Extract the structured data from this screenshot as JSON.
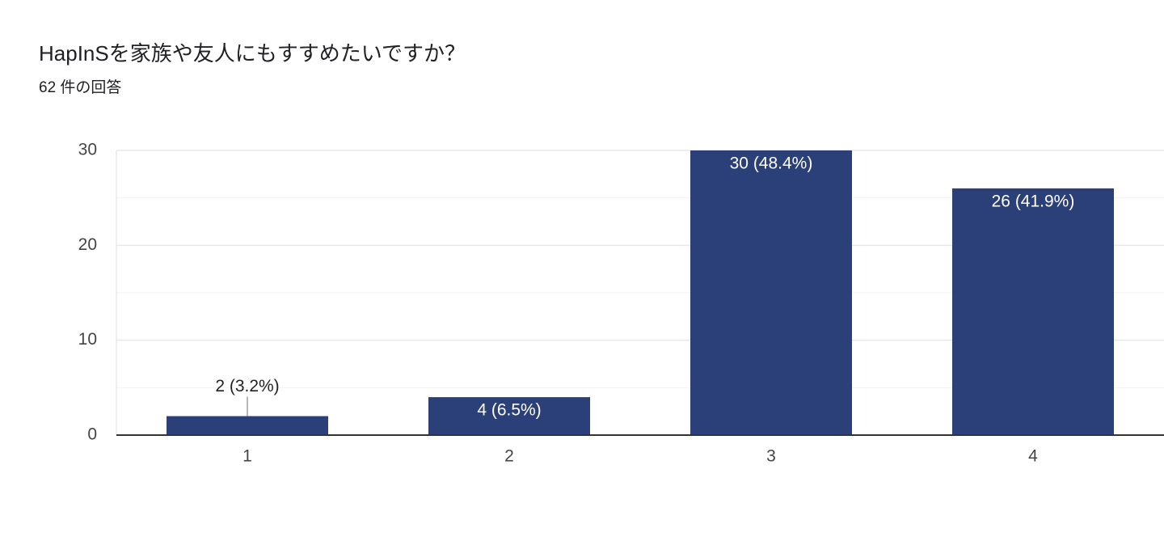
{
  "chart_data": {
    "type": "bar",
    "title": "HapInSを家族や友人にもすすめたいですか？",
    "subtitle": "62 件の回答",
    "categories": [
      "1",
      "2",
      "3",
      "4"
    ],
    "values": [
      2,
      4,
      30,
      26
    ],
    "value_labels": [
      "2 (3.2%)",
      "4 (6.5%)",
      "30 (48.4%)",
      "26 (41.9%)"
    ],
    "color": "#2b3f78",
    "ylim": [
      0,
      30
    ],
    "yticks": [
      0,
      10,
      20,
      30
    ],
    "minor_yticks": [
      5,
      15,
      25
    ],
    "grid": true
  }
}
